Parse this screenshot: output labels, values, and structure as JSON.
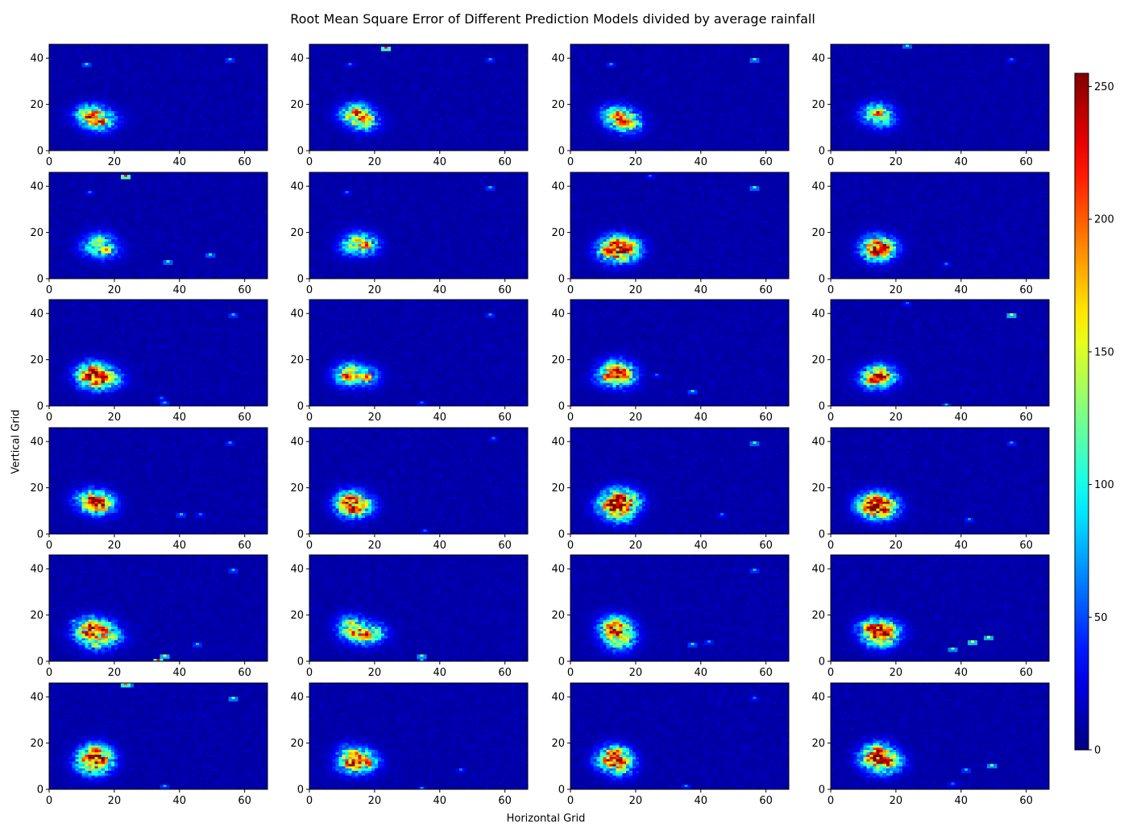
{
  "chart_data": {
    "type": "heatmap",
    "title": "Root Mean Square Error of Different Prediction Models divided by average rainfall",
    "xlabel": "Horizontal Grid",
    "ylabel": "Vertical Grid",
    "layout": {
      "rows": 6,
      "cols": 4
    },
    "xlim": [
      0,
      67
    ],
    "ylim": [
      0,
      46
    ],
    "x_ticks": [
      0,
      20,
      40,
      60
    ],
    "y_ticks": [
      0,
      20,
      40
    ],
    "colormap": "jet",
    "colorbar": {
      "min": 0,
      "max": 255,
      "ticks": [
        0,
        50,
        100,
        150,
        200,
        250
      ]
    },
    "background_value": 8,
    "panels": [
      {
        "hot": [
          [
            13,
            15,
            230
          ],
          [
            15,
            12,
            250
          ],
          [
            11,
            15,
            180
          ],
          [
            19,
            13,
            60
          ]
        ],
        "spots": [
          [
            11,
            37,
            90
          ],
          [
            55,
            39,
            80
          ]
        ]
      },
      {
        "hot": [
          [
            14,
            16,
            230
          ],
          [
            16,
            13,
            200
          ],
          [
            12,
            15,
            140
          ],
          [
            17,
            11,
            120
          ]
        ],
        "spots": [
          [
            23,
            44,
            220
          ],
          [
            55,
            39,
            70
          ],
          [
            12,
            37,
            60
          ]
        ]
      },
      {
        "hot": [
          [
            14,
            15,
            220
          ],
          [
            16,
            12,
            240
          ],
          [
            12,
            15,
            120
          ],
          [
            18,
            11,
            160
          ]
        ],
        "spots": [
          [
            56,
            39,
            110
          ],
          [
            12,
            37,
            70
          ]
        ]
      },
      {
        "hot": [
          [
            14,
            16,
            240
          ],
          [
            12,
            15,
            130
          ],
          [
            16,
            12,
            110
          ]
        ],
        "spots": [
          [
            23,
            45,
            110
          ],
          [
            55,
            39,
            60
          ]
        ]
      },
      {
        "hot": [
          [
            15,
            16,
            150
          ],
          [
            17,
            12,
            200
          ],
          [
            12,
            13,
            110
          ]
        ],
        "spots": [
          [
            23,
            44,
            230
          ],
          [
            36,
            7,
            110
          ],
          [
            49,
            10,
            100
          ],
          [
            12,
            37,
            60
          ]
        ]
      },
      {
        "hot": [
          [
            14,
            16,
            160
          ],
          [
            17,
            14,
            230
          ],
          [
            12,
            13,
            130
          ]
        ],
        "spots": [
          [
            55,
            39,
            80
          ],
          [
            11,
            37,
            60
          ]
        ]
      },
      {
        "hot": [
          [
            13,
            15,
            250
          ],
          [
            16,
            12,
            240
          ],
          [
            11,
            11,
            230
          ],
          [
            15,
            9,
            140
          ],
          [
            18,
            13,
            180
          ]
        ],
        "spots": [
          [
            56,
            39,
            110
          ],
          [
            24,
            44,
            60
          ]
        ]
      },
      {
        "hot": [
          [
            13,
            15,
            200
          ],
          [
            16,
            13,
            240
          ],
          [
            12,
            11,
            150
          ],
          [
            15,
            11,
            230
          ]
        ],
        "spots": [
          [
            35,
            6,
            60
          ]
        ]
      },
      {
        "hot": [
          [
            13,
            15,
            250
          ],
          [
            11,
            12,
            230
          ],
          [
            16,
            12,
            250
          ],
          [
            14,
            10,
            180
          ],
          [
            19,
            11,
            130
          ]
        ],
        "spots": [
          [
            56,
            39,
            80
          ],
          [
            35,
            1,
            80
          ],
          [
            34,
            3,
            60
          ]
        ]
      },
      {
        "hot": [
          [
            12,
            15,
            160
          ],
          [
            11,
            12,
            250
          ],
          [
            17,
            12,
            220
          ]
        ],
        "spots": [
          [
            55,
            39,
            70
          ],
          [
            34,
            1,
            60
          ]
        ]
      },
      {
        "hot": [
          [
            13,
            16,
            180
          ],
          [
            15,
            14,
            250
          ],
          [
            11,
            12,
            230
          ],
          [
            16,
            11,
            160
          ]
        ],
        "spots": [
          [
            37,
            6,
            90
          ],
          [
            26,
            13,
            60
          ]
        ]
      },
      {
        "hot": [
          [
            14,
            14,
            150
          ],
          [
            12,
            11,
            250
          ],
          [
            16,
            12,
            250
          ]
        ],
        "spots": [
          [
            55,
            39,
            150
          ],
          [
            35,
            0,
            80
          ],
          [
            23,
            44,
            60
          ]
        ]
      },
      {
        "hot": [
          [
            12,
            15,
            150
          ],
          [
            11,
            13,
            180
          ],
          [
            15,
            14,
            250
          ],
          [
            16,
            11,
            200
          ]
        ],
        "spots": [
          [
            55,
            39,
            70
          ],
          [
            40,
            8,
            80
          ],
          [
            46,
            8,
            60
          ]
        ]
      },
      {
        "hot": [
          [
            12,
            15,
            250
          ],
          [
            11,
            12,
            180
          ],
          [
            16,
            12,
            180
          ],
          [
            13,
            10,
            250
          ]
        ],
        "spots": [
          [
            35,
            1,
            60
          ],
          [
            56,
            41,
            60
          ]
        ]
      },
      {
        "hot": [
          [
            14,
            16,
            250
          ],
          [
            11,
            12,
            250
          ],
          [
            16,
            12,
            250
          ],
          [
            13,
            9,
            180
          ],
          [
            18,
            14,
            150
          ],
          [
            15,
            7,
            130
          ]
        ],
        "spots": [
          [
            56,
            39,
            110
          ],
          [
            46,
            8,
            60
          ]
        ]
      },
      {
        "hot": [
          [
            12,
            14,
            220
          ],
          [
            11,
            11,
            250
          ],
          [
            16,
            13,
            250
          ],
          [
            14,
            9,
            180
          ],
          [
            17,
            10,
            150
          ]
        ],
        "spots": [
          [
            55,
            39,
            70
          ],
          [
            42,
            6,
            70
          ]
        ]
      },
      {
        "hot": [
          [
            12,
            15,
            250
          ],
          [
            11,
            11,
            250
          ],
          [
            16,
            13,
            250
          ],
          [
            14,
            7,
            150
          ],
          [
            19,
            10,
            150
          ]
        ],
        "spots": [
          [
            35,
            2,
            150
          ],
          [
            33,
            0,
            230
          ],
          [
            45,
            7,
            80
          ],
          [
            56,
            39,
            80
          ],
          [
            7,
            17,
            90
          ]
        ]
      },
      {
        "hot": [
          [
            12,
            16,
            180
          ],
          [
            13,
            12,
            230
          ],
          [
            17,
            11,
            250
          ],
          [
            20,
            12,
            130
          ]
        ],
        "spots": [
          [
            34,
            2,
            130
          ],
          [
            34,
            0,
            80
          ]
        ]
      },
      {
        "hot": [
          [
            13,
            16,
            200
          ],
          [
            12,
            12,
            250
          ],
          [
            15,
            14,
            180
          ],
          [
            16,
            9,
            160
          ],
          [
            14,
            7,
            130
          ]
        ],
        "spots": [
          [
            37,
            7,
            90
          ],
          [
            42,
            8,
            70
          ],
          [
            56,
            39,
            80
          ]
        ]
      },
      {
        "hot": [
          [
            12,
            14,
            250
          ],
          [
            13,
            11,
            230
          ],
          [
            16,
            12,
            250
          ],
          [
            15,
            8,
            140
          ],
          [
            18,
            13,
            140
          ]
        ],
        "spots": [
          [
            37,
            5,
            130
          ],
          [
            43,
            8,
            160
          ],
          [
            48,
            10,
            150
          ]
        ]
      },
      {
        "hot": [
          [
            14,
            16,
            230
          ],
          [
            12,
            13,
            250
          ],
          [
            16,
            12,
            250
          ],
          [
            11,
            10,
            150
          ],
          [
            14,
            8,
            120
          ]
        ],
        "spots": [
          [
            24,
            45,
            120
          ],
          [
            23,
            45,
            200
          ],
          [
            56,
            39,
            120
          ],
          [
            35,
            1,
            80
          ]
        ]
      },
      {
        "hot": [
          [
            12,
            15,
            180
          ],
          [
            15,
            13,
            200
          ],
          [
            12,
            10,
            250
          ],
          [
            17,
            11,
            230
          ]
        ],
        "spots": [
          [
            34,
            0,
            70
          ],
          [
            46,
            8,
            60
          ]
        ]
      },
      {
        "hot": [
          [
            13,
            15,
            250
          ],
          [
            11,
            12,
            250
          ],
          [
            15,
            12,
            250
          ],
          [
            15,
            8,
            140
          ]
        ],
        "spots": [
          [
            56,
            39,
            60
          ],
          [
            35,
            1,
            70
          ]
        ]
      },
      {
        "hot": [
          [
            14,
            16,
            250
          ],
          [
            12,
            13,
            230
          ],
          [
            16,
            12,
            250
          ],
          [
            14,
            9,
            160
          ],
          [
            19,
            11,
            130
          ]
        ],
        "spots": [
          [
            41,
            8,
            80
          ],
          [
            49,
            10,
            130
          ],
          [
            37,
            2,
            60
          ]
        ]
      }
    ]
  }
}
